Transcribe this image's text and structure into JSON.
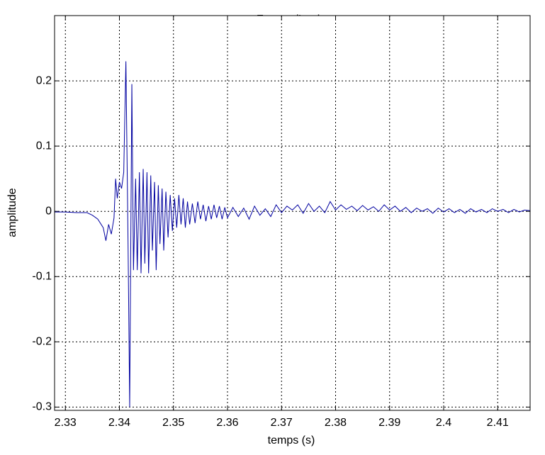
{
  "chart_data": {
    "type": "line",
    "title": "Forme d'onde",
    "x_label": "temps (s)",
    "y_label": "amplitude",
    "xlim": [
      2.328,
      2.416
    ],
    "ylim": [
      -0.305,
      0.3
    ],
    "xticks": [
      2.33,
      2.34,
      2.35,
      2.36,
      2.37,
      2.38,
      2.39,
      2.4,
      2.41
    ],
    "yticks": [
      -0.3,
      -0.2,
      -0.1,
      0,
      0.1,
      0.2
    ],
    "grid": true,
    "series": [
      {
        "color": "#0000a0",
        "x": [
          2.328,
          2.33,
          2.332,
          2.334,
          2.335,
          2.336,
          2.337,
          2.3375,
          2.338,
          2.3385,
          2.339,
          2.3393,
          2.3396,
          2.34,
          2.3404,
          2.3408,
          2.3412,
          2.3416,
          2.3419,
          2.3423,
          2.3426,
          2.343,
          2.3433,
          2.3437,
          2.344,
          2.3444,
          2.3447,
          2.3451,
          2.3454,
          2.3458,
          2.3461,
          2.3465,
          2.3468,
          2.3472,
          2.3475,
          2.3479,
          2.3482,
          2.3486,
          2.349,
          2.3494,
          2.3498,
          2.3502,
          2.3506,
          2.351,
          2.3514,
          2.3518,
          2.3522,
          2.3526,
          2.353,
          2.3535,
          2.354,
          2.3545,
          2.355,
          2.3555,
          2.356,
          2.3565,
          2.357,
          2.3575,
          2.358,
          2.3585,
          2.359,
          2.3595,
          2.36,
          2.361,
          2.362,
          2.363,
          2.364,
          2.365,
          2.366,
          2.367,
          2.368,
          2.369,
          2.37,
          2.371,
          2.372,
          2.373,
          2.374,
          2.375,
          2.376,
          2.377,
          2.378,
          2.379,
          2.38,
          2.381,
          2.382,
          2.383,
          2.384,
          2.385,
          2.386,
          2.387,
          2.388,
          2.389,
          2.39,
          2.391,
          2.392,
          2.393,
          2.394,
          2.395,
          2.396,
          2.397,
          2.398,
          2.399,
          2.4,
          2.401,
          2.402,
          2.403,
          2.404,
          2.405,
          2.406,
          2.407,
          2.408,
          2.409,
          2.41,
          2.411,
          2.412,
          2.413,
          2.414,
          2.415,
          2.416
        ],
        "values": [
          -0.001,
          -0.001,
          -0.002,
          -0.002,
          -0.006,
          -0.012,
          -0.025,
          -0.045,
          -0.02,
          -0.035,
          -0.01,
          0.05,
          0.02,
          0.045,
          0.035,
          0.06,
          0.23,
          -0.05,
          -0.3,
          0.195,
          -0.09,
          0.05,
          -0.09,
          0.06,
          -0.095,
          0.065,
          -0.08,
          0.06,
          -0.095,
          0.055,
          -0.06,
          0.045,
          -0.09,
          0.04,
          -0.05,
          0.035,
          -0.06,
          0.03,
          -0.04,
          0.025,
          -0.03,
          0.02,
          -0.025,
          0.025,
          -0.02,
          0.02,
          -0.025,
          0.015,
          -0.02,
          0.012,
          -0.018,
          0.015,
          -0.012,
          0.01,
          -0.015,
          0.008,
          -0.012,
          0.01,
          -0.01,
          0.008,
          -0.012,
          0.006,
          -0.01,
          0.006,
          -0.008,
          0.005,
          -0.012,
          0.008,
          -0.006,
          0.004,
          -0.008,
          0.01,
          -0.002,
          0.008,
          0.002,
          0.01,
          -0.003,
          0.012,
          0.0,
          0.008,
          -0.002,
          0.015,
          0.002,
          0.01,
          0.003,
          0.008,
          0.001,
          0.009,
          0.002,
          0.007,
          0.0,
          0.01,
          0.002,
          0.008,
          0.0,
          0.006,
          -0.002,
          0.005,
          0.0,
          0.004,
          -0.003,
          0.005,
          -0.001,
          0.004,
          -0.002,
          0.003,
          -0.003,
          0.004,
          -0.001,
          0.003,
          -0.002,
          0.004,
          0.0,
          0.003,
          -0.002,
          0.003,
          -0.001,
          0.002,
          0.001
        ]
      }
    ]
  }
}
